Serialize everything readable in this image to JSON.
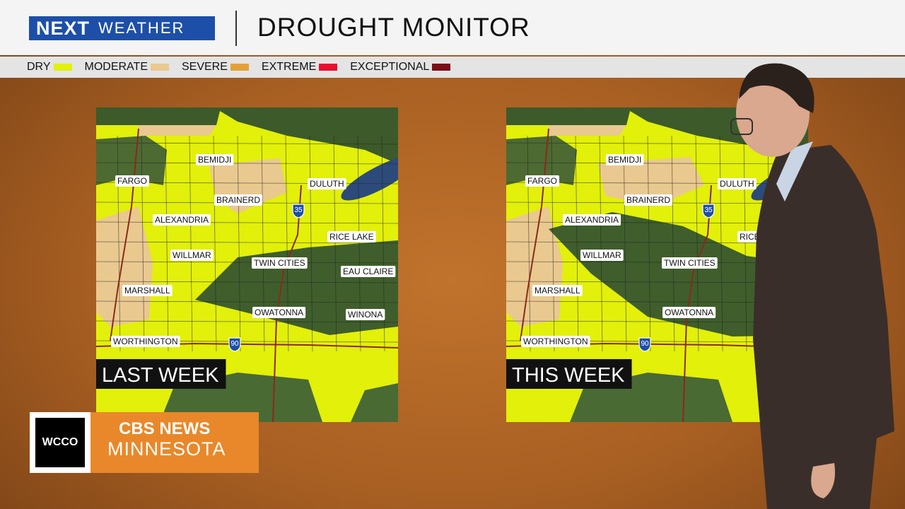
{
  "header": {
    "brand_prefix": "NEXT",
    "brand_suffix": "WEATHER",
    "title": "DROUGHT MONITOR"
  },
  "legend": [
    {
      "label": "DRY",
      "color": "#e2f00a"
    },
    {
      "label": "MODERATE",
      "color": "#e9c98f"
    },
    {
      "label": "SEVERE",
      "color": "#e4a13a"
    },
    {
      "label": "EXTREME",
      "color": "#e8102e"
    },
    {
      "label": "EXCEPTIONAL",
      "color": "#7b0f17"
    }
  ],
  "maps": [
    {
      "caption": "LAST WEEK",
      "cities": [
        "FARGO",
        "BEMIDJI",
        "DULUTH",
        "BRAINERD",
        "ALEXANDRIA",
        "RICE LAKE",
        "WILLMAR",
        "TWIN CITIES",
        "EAU CLAIRE",
        "MARSHALL",
        "OWATONNA",
        "WINONA",
        "WORTHINGTON"
      ],
      "interstates": [
        "35",
        "90"
      ]
    },
    {
      "caption": "THIS WEEK",
      "cities": [
        "FARGO",
        "BEMIDJI",
        "DULUTH",
        "BRAINERD",
        "ALEXANDRIA",
        "RICE L",
        "WILLMAR",
        "TWIN CITIES",
        "MARSHALL",
        "OWATONNA",
        "WORTHINGTON"
      ],
      "interstates": [
        "35",
        "90"
      ]
    }
  ],
  "logo": {
    "station": "WCCO",
    "network": "CBS NEWS",
    "region": "MINNESOTA"
  }
}
